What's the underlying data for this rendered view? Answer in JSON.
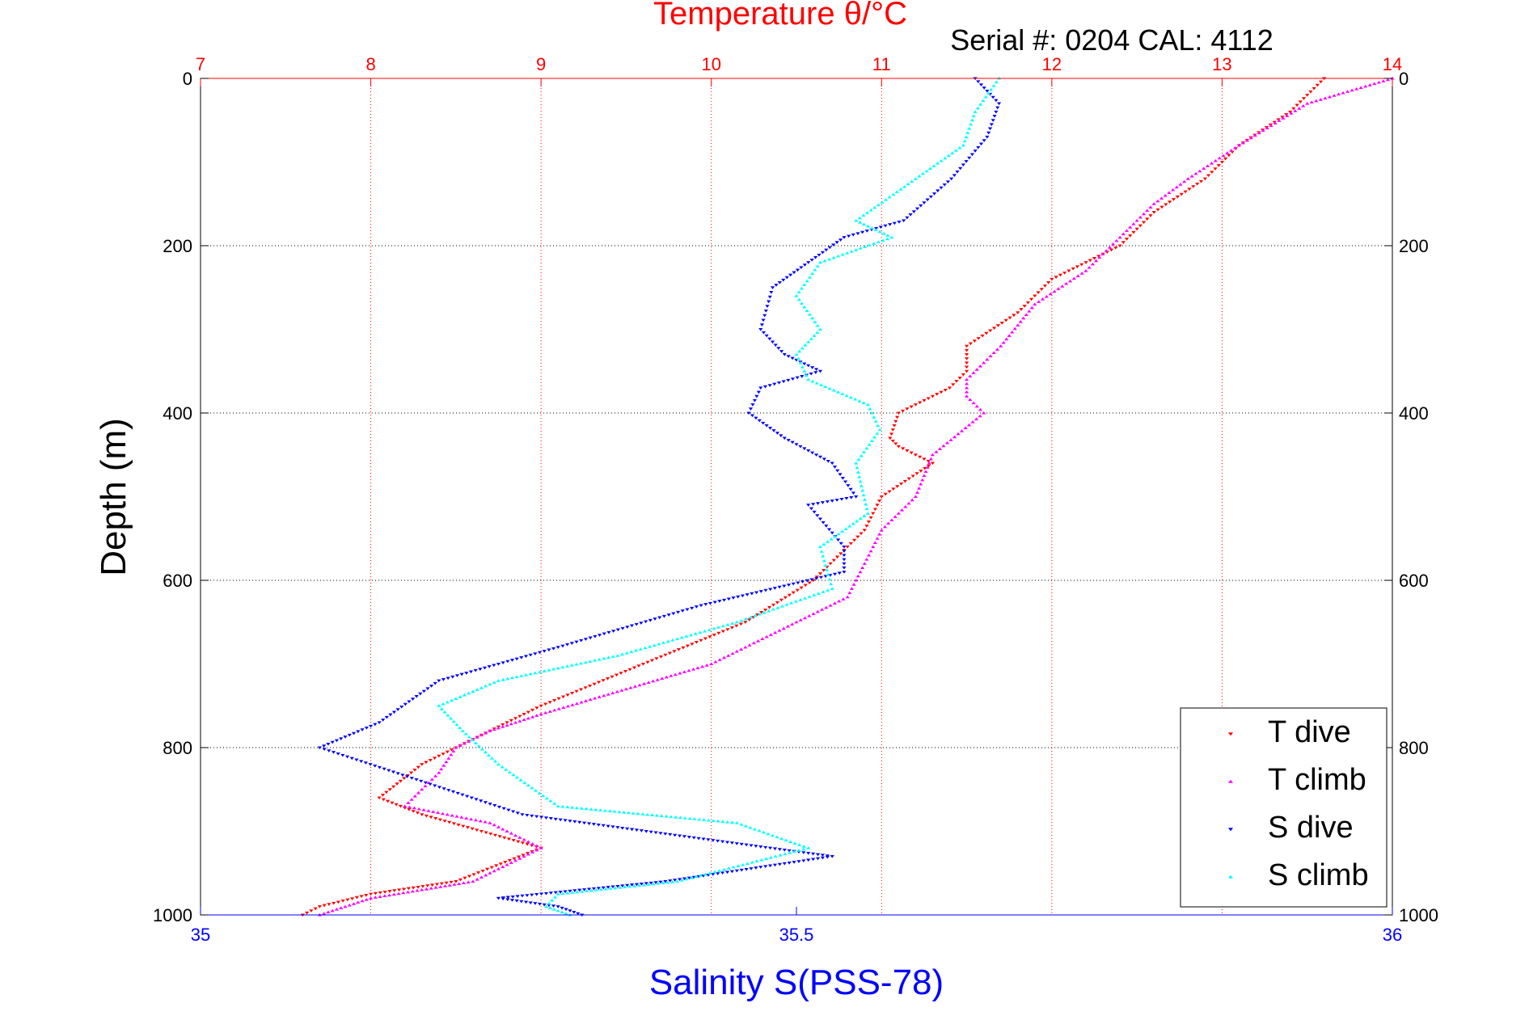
{
  "chart_data": {
    "type": "scatter",
    "title": "Temperature θ/°C",
    "subtitle": "Serial #: 0204  CAL: 4112",
    "ylabel": "Depth (m)",
    "xlabel": "Salinity S(PSS-78)",
    "temperature_axis": {
      "label": "Temperature θ/°C",
      "range": [
        7,
        14
      ],
      "ticks": [
        "7",
        "8",
        "9",
        "10",
        "11",
        "12",
        "13",
        "14"
      ],
      "color": "#ff0000",
      "position": "top"
    },
    "salinity_axis": {
      "label": "Salinity S(PSS-78)",
      "range": [
        35,
        36
      ],
      "ticks": [
        "35",
        "35.5",
        "36"
      ],
      "color": "#0000ff",
      "position": "bottom"
    },
    "depth_axis": {
      "range": [
        0,
        1000
      ],
      "reversed": true,
      "ticks": [
        "0",
        "200",
        "400",
        "600",
        "800",
        "1000"
      ]
    },
    "grid": true,
    "legend_position": "bottom-right",
    "series": [
      {
        "name": "T dive",
        "axis": "temperature",
        "color": "#ff0000",
        "marker": "triangle-down",
        "x": [
          13.6,
          13.4,
          13.1,
          12.9,
          12.6,
          12.4,
          12.0,
          11.8,
          11.5,
          11.5,
          11.4,
          11.1,
          11.05,
          11.1,
          11.3,
          11.0,
          10.9,
          10.6,
          10.2,
          9.6,
          9.0,
          8.5,
          8.3,
          8.05,
          8.3,
          9.0,
          8.5,
          8.0,
          7.7,
          7.6
        ],
        "y": [
          0,
          40,
          80,
          120,
          160,
          200,
          240,
          280,
          320,
          350,
          370,
          400,
          430,
          440,
          460,
          500,
          540,
          600,
          650,
          700,
          750,
          800,
          820,
          860,
          880,
          920,
          960,
          975,
          990,
          1000
        ]
      },
      {
        "name": "T climb",
        "axis": "temperature",
        "color": "#ff00ff",
        "marker": "triangle-up",
        "x": [
          14.0,
          13.5,
          13.1,
          12.8,
          12.6,
          12.4,
          12.2,
          11.9,
          11.7,
          11.5,
          11.5,
          11.6,
          11.3,
          11.2,
          11.0,
          10.9,
          10.8,
          10.4,
          10.0,
          9.5,
          9.0,
          8.7,
          8.5,
          8.4,
          8.2,
          8.7,
          9.0,
          8.6,
          8.0,
          7.7
        ],
        "y": [
          0,
          30,
          80,
          120,
          150,
          190,
          230,
          270,
          320,
          360,
          380,
          400,
          450,
          500,
          540,
          580,
          620,
          660,
          700,
          730,
          760,
          780,
          800,
          830,
          870,
          890,
          920,
          960,
          980,
          1000
        ]
      },
      {
        "name": "S dive",
        "axis": "salinity",
        "color": "#0000ff",
        "marker": "triangle-down",
        "x": [
          35.65,
          35.67,
          35.66,
          35.63,
          35.59,
          35.54,
          35.51,
          35.48,
          35.47,
          35.49,
          35.52,
          35.47,
          35.46,
          35.49,
          35.53,
          35.55,
          35.51,
          35.54,
          35.54,
          35.42,
          35.3,
          35.2,
          35.15,
          35.1,
          35.27,
          35.53,
          35.39,
          35.25,
          35.3,
          35.32
        ],
        "y": [
          0,
          30,
          70,
          120,
          170,
          190,
          220,
          250,
          300,
          330,
          350,
          370,
          400,
          430,
          460,
          500,
          510,
          560,
          590,
          630,
          680,
          720,
          770,
          800,
          880,
          930,
          960,
          980,
          990,
          1000
        ]
      },
      {
        "name": "S climb",
        "axis": "salinity",
        "color": "#00ffff",
        "marker": "triangle-up",
        "x": [
          35.67,
          35.65,
          35.64,
          35.6,
          35.55,
          35.58,
          35.52,
          35.5,
          35.52,
          35.5,
          35.51,
          35.56,
          35.57,
          35.55,
          35.56,
          35.52,
          35.53,
          35.45,
          35.35,
          35.25,
          35.2,
          35.22,
          35.25,
          35.3,
          35.45,
          35.51,
          35.4,
          35.3,
          35.29,
          35.31
        ],
        "y": [
          0,
          40,
          80,
          120,
          170,
          190,
          220,
          260,
          300,
          330,
          360,
          390,
          420,
          460,
          520,
          560,
          610,
          650,
          690,
          720,
          750,
          780,
          820,
          870,
          890,
          920,
          960,
          975,
          990,
          1000
        ]
      }
    ]
  }
}
